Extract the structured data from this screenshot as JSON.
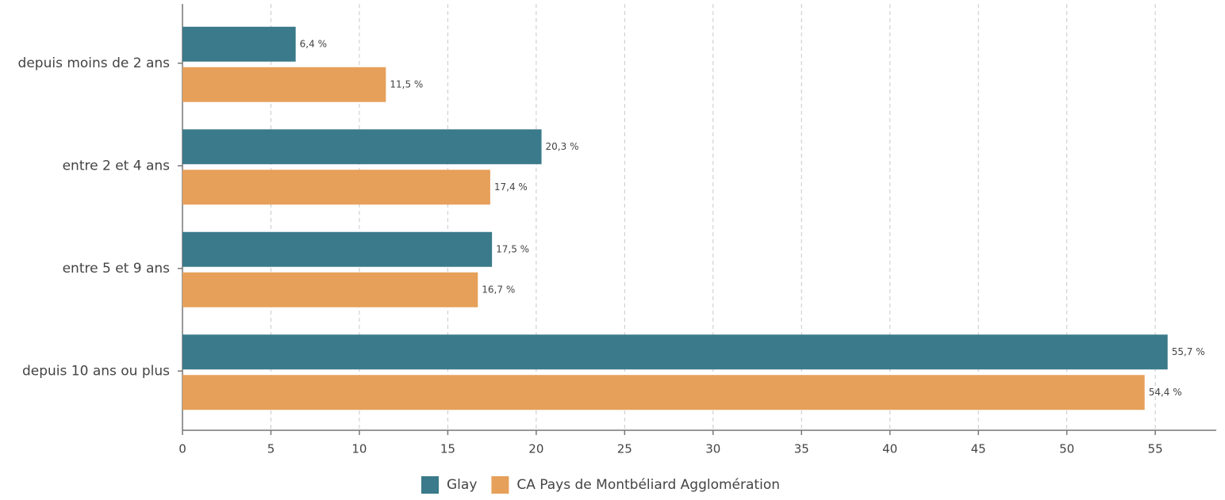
{
  "chart_data": {
    "type": "barh",
    "categories": [
      "depuis moins de 2 ans",
      "entre 2 et 4 ans",
      "entre 5 et 9 ans",
      "depuis 10 ans ou plus"
    ],
    "series": [
      {
        "name": "Glay",
        "color": "#3a7a8a",
        "values": [
          6.4,
          20.3,
          17.5,
          55.7
        ],
        "value_labels": [
          "6,4 %",
          "20,3 %",
          "17,5 %",
          "55,7 %"
        ]
      },
      {
        "name": "CA Pays de Montbéliard Agglomération",
        "color": "#e6a05a",
        "values": [
          11.5,
          17.4,
          16.7,
          54.4
        ],
        "value_labels": [
          "11,5 %",
          "17,4 %",
          "16,7 %",
          "54,4 %"
        ]
      }
    ],
    "xlim": [
      0,
      58.45
    ],
    "xticks": [
      0,
      5,
      10,
      15,
      20,
      25,
      30,
      35,
      40,
      45,
      50,
      55
    ],
    "grid": true,
    "legend": "bottom"
  }
}
